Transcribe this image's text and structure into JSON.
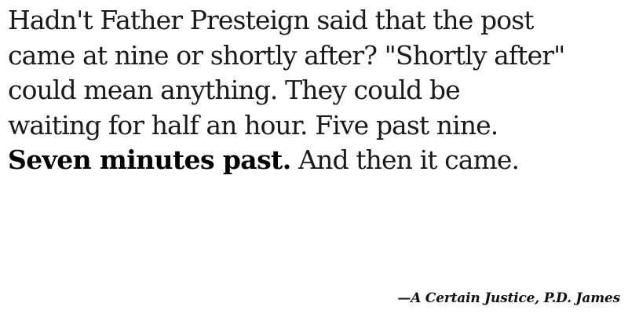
{
  "quote": {
    "lines": [
      "Hadn't Father Presteign said that the post",
      "came at nine or shortly after? \"Shortly after\"",
      "could mean anything. They could be",
      "waiting for half an hour. Five past nine."
    ],
    "last_line_bold": "Seven minutes past.",
    "last_line_rest": " And then it came."
  },
  "attribution": "—A Certain Justice, P.D. James"
}
